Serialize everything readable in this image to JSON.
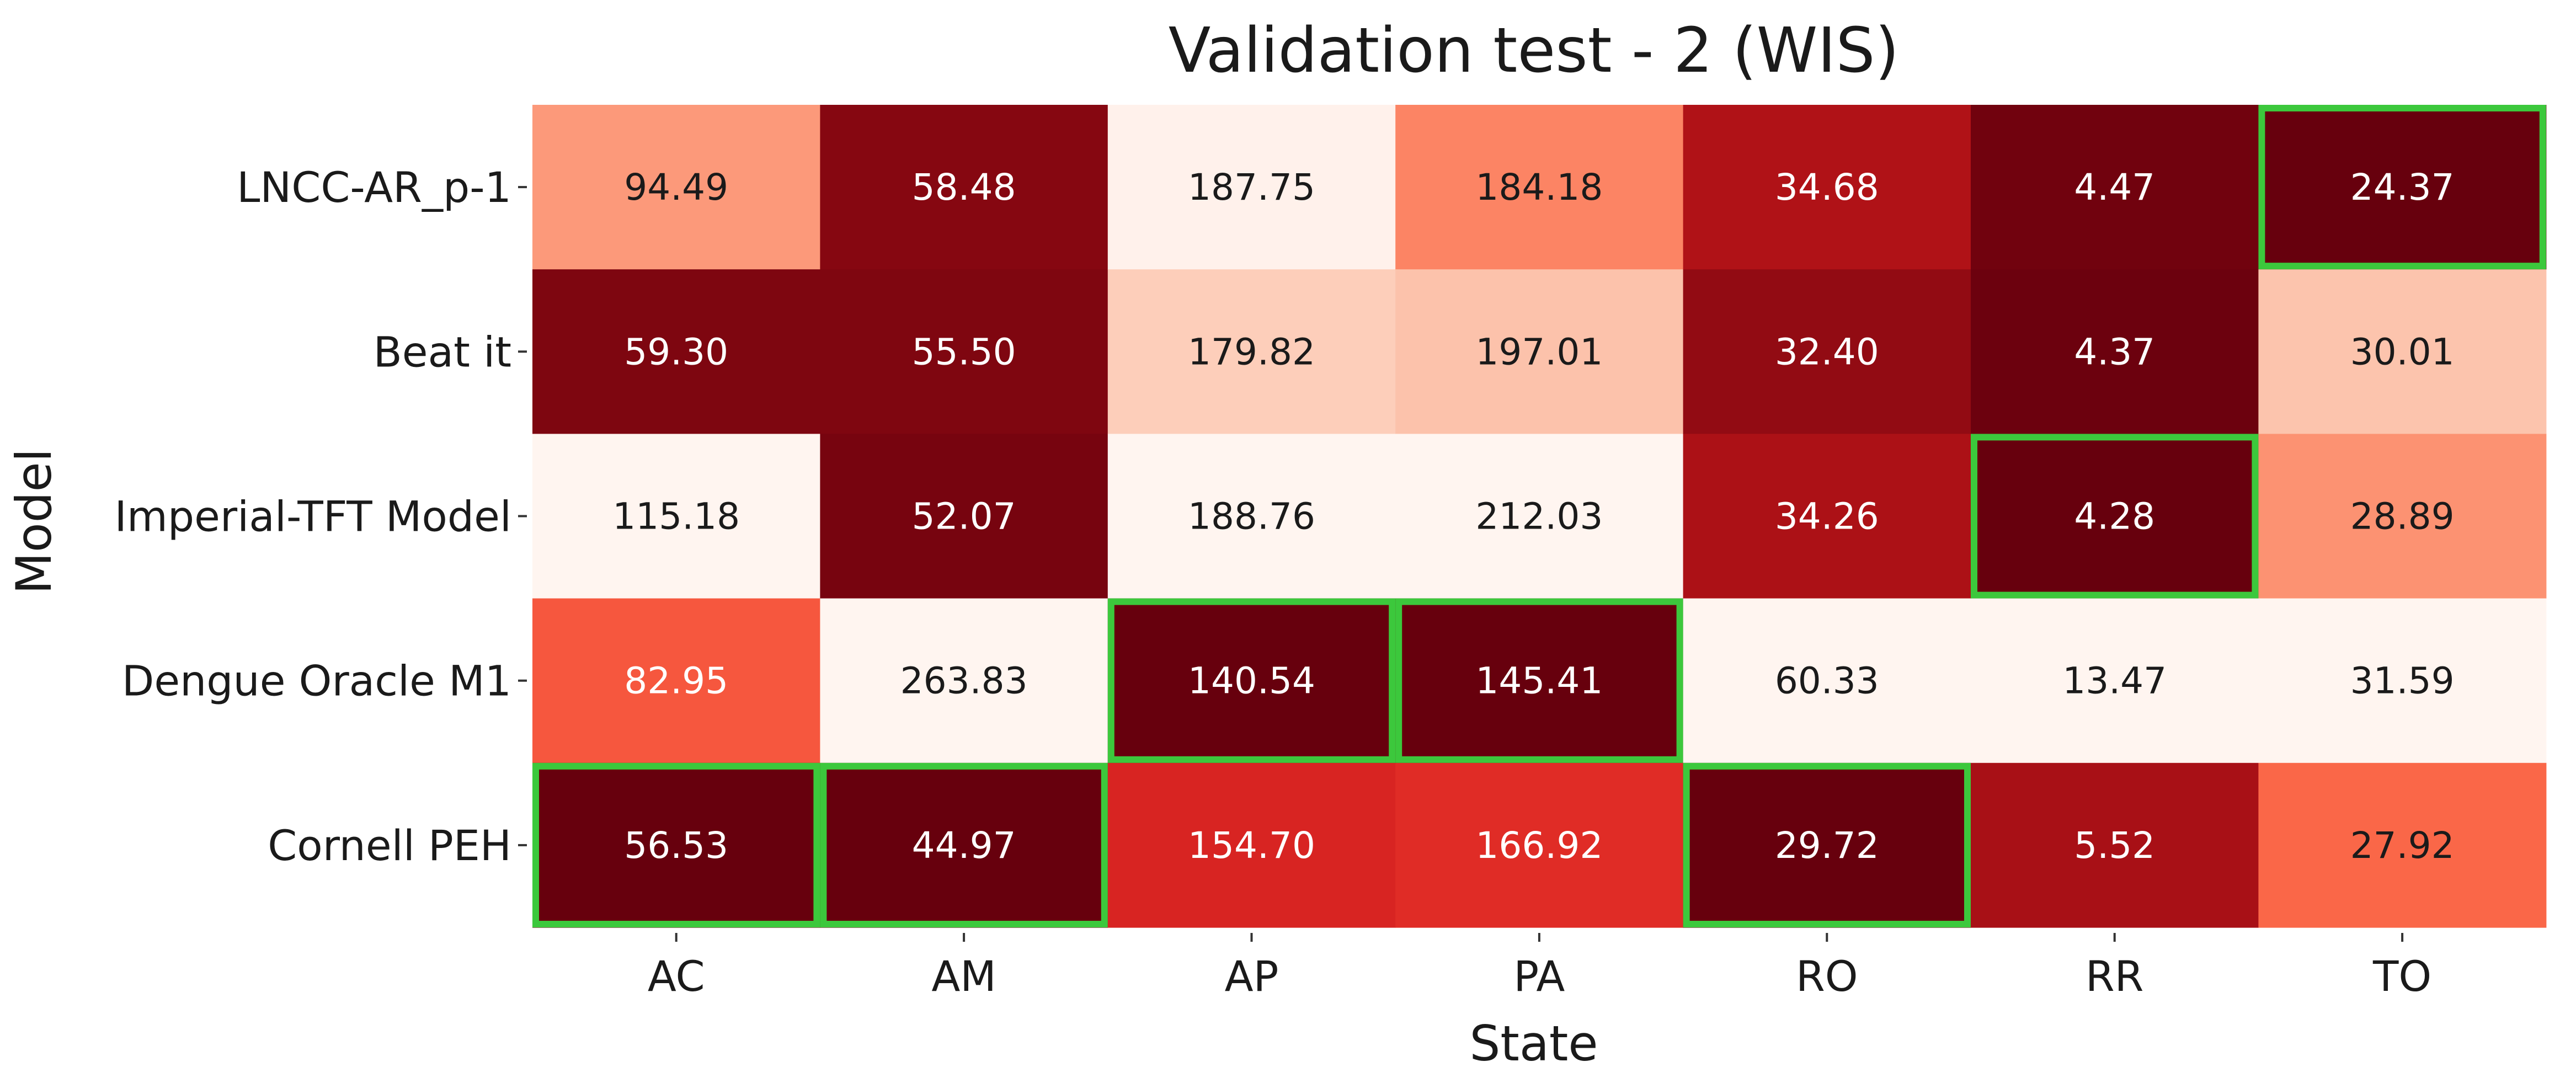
{
  "chart_data": {
    "type": "heatmap",
    "title": "Validation test - 2 (WIS)",
    "xlabel": "State",
    "ylabel": "Model",
    "x_categories": [
      "AC",
      "AM",
      "AP",
      "PA",
      "RO",
      "RR",
      "TO"
    ],
    "y_categories": [
      "LNCC-AR_p-1",
      "Beat it",
      "Imperial-TFT Model",
      "Dengue Oracle M1",
      "Cornell PEH"
    ],
    "values": [
      [
        94.49,
        58.48,
        187.75,
        184.18,
        34.68,
        4.47,
        24.37
      ],
      [
        59.3,
        55.5,
        179.82,
        197.01,
        32.4,
        4.37,
        30.01
      ],
      [
        115.18,
        52.07,
        188.76,
        212.03,
        34.26,
        4.28,
        28.89
      ],
      [
        82.95,
        263.83,
        140.54,
        145.41,
        60.33,
        13.47,
        31.59
      ],
      [
        56.53,
        44.97,
        154.7,
        166.92,
        29.72,
        5.52,
        27.92
      ]
    ],
    "value_labels": [
      [
        "94.49",
        "58.48",
        "187.75",
        "184.18",
        "34.68",
        "4.47",
        "24.37"
      ],
      [
        "59.30",
        "55.50",
        "179.82",
        "197.01",
        "32.40",
        "4.37",
        "30.01"
      ],
      [
        "115.18",
        "52.07",
        "188.76",
        "212.03",
        "34.26",
        "4.28",
        "28.89"
      ],
      [
        "82.95",
        "263.83",
        "140.54",
        "145.41",
        "60.33",
        "13.47",
        "31.59"
      ],
      [
        "56.53",
        "44.97",
        "154.70",
        "166.92",
        "29.72",
        "5.52",
        "27.92"
      ]
    ],
    "colormap": "Reds_r (per-column scale, darkest = lowest)",
    "best_per_column_row_index": [
      4,
      4,
      3,
      3,
      4,
      2,
      0
    ],
    "highlight_color": "#3cc83c",
    "colorbar": false,
    "grid": false
  }
}
